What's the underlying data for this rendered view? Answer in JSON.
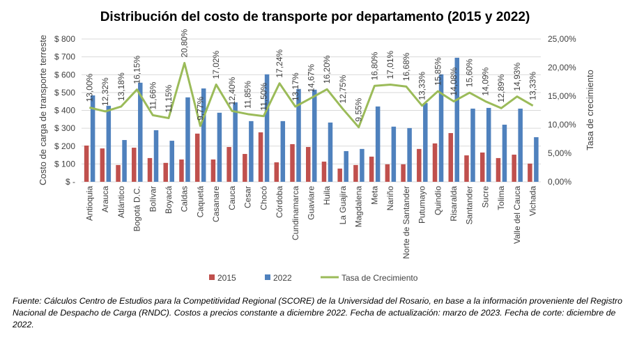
{
  "chart_data": {
    "type": "bar",
    "title": "Distribución del costo de transporte por departamento (2015 y 2022)",
    "ylabel": "Costo de carga de transporte terreste",
    "y2label": "Tasa de crecimiento",
    "ylim": [
      0,
      800
    ],
    "y2lim": [
      0,
      25
    ],
    "yticks": [
      "$ -",
      "$ 100",
      "$ 200",
      "$ 300",
      "$ 400",
      "$ 500",
      "$ 600",
      "$ 700",
      "$ 800"
    ],
    "y2ticks": [
      "0,00%",
      "5,00%",
      "10,00%",
      "15,00%",
      "20,00%",
      "25,00%"
    ],
    "grid": true,
    "legend_position": "bottom",
    "categories": [
      "Antioquia",
      "Arauca",
      "Atlántico",
      "Bogotá D.C.",
      "Bolívar",
      "Boyacá",
      "Caldas",
      "Caquetá",
      "Casanare",
      "Cauca",
      "Cesar",
      "Chocó",
      "Córdoba",
      "Cundinamarca",
      "Guaviare",
      "Huila",
      "La Guajira",
      "Magdalena",
      "Meta",
      "Nariño",
      "Norte de Santander",
      "Putumayo",
      "Quindío",
      "Risaralda",
      "Santander",
      "Sucre",
      "Tolima",
      "Valle del Cauca",
      "Vichada"
    ],
    "series": [
      {
        "name": "2015",
        "type": "bar",
        "color": "#c0504d",
        "values": [
          203,
          187,
          94,
          191,
          133,
          106,
          125,
          270,
          125,
          195,
          156,
          277,
          109,
          211,
          195,
          113,
          74,
          94,
          141,
          98,
          98,
          184,
          215,
          273,
          148,
          164,
          133,
          152,
          102
        ]
      },
      {
        "name": "2022",
        "type": "bar",
        "color": "#4f81bd",
        "values": [
          484,
          426,
          234,
          555,
          289,
          230,
          473,
          523,
          387,
          445,
          340,
          602,
          340,
          520,
          516,
          332,
          172,
          184,
          422,
          309,
          301,
          441,
          602,
          695,
          410,
          414,
          320,
          410,
          250
        ]
      },
      {
        "name": "Tasa de Crecimiento",
        "type": "line",
        "axis": "right",
        "color": "#9bbb59",
        "values": [
          13.0,
          12.32,
          13.18,
          16.15,
          11.66,
          11.15,
          20.8,
          9.77,
          17.02,
          12.4,
          11.85,
          11.5,
          17.24,
          13.17,
          14.67,
          16.2,
          12.75,
          9.55,
          16.8,
          17.01,
          16.68,
          13.33,
          15.85,
          14.08,
          15.6,
          14.09,
          12.89,
          14.93,
          13.33
        ],
        "labels": [
          "13,00%",
          "12,32%",
          "13,18%",
          "16,15%",
          "11,66%",
          "11,15%",
          "20,80%",
          "9,77%",
          "17,02%",
          "12,40%",
          "11,85%",
          "11,50%",
          "17,24%",
          "13,17%",
          "14,67%",
          "16,20%",
          "12,75%",
          "9,55%",
          "16,80%",
          "17,01%",
          "16,68%",
          "13,33%",
          "15,85%",
          "14,08%",
          "15,60%",
          "14,09%",
          "12,89%",
          "14,93%",
          "13,33%"
        ]
      }
    ]
  },
  "footnote": "Fuente: Cálculos Centro de Estudios para la Competitividad Regional (SCORE) de la Universidad del Rosario, en base a la información proveniente del Registro Nacional de Despacho de Carga (RNDC). Costos a precios constante a diciembre 2022. Fecha de actualización: marzo de 2023. Fecha de corte: diciembre de 2022."
}
